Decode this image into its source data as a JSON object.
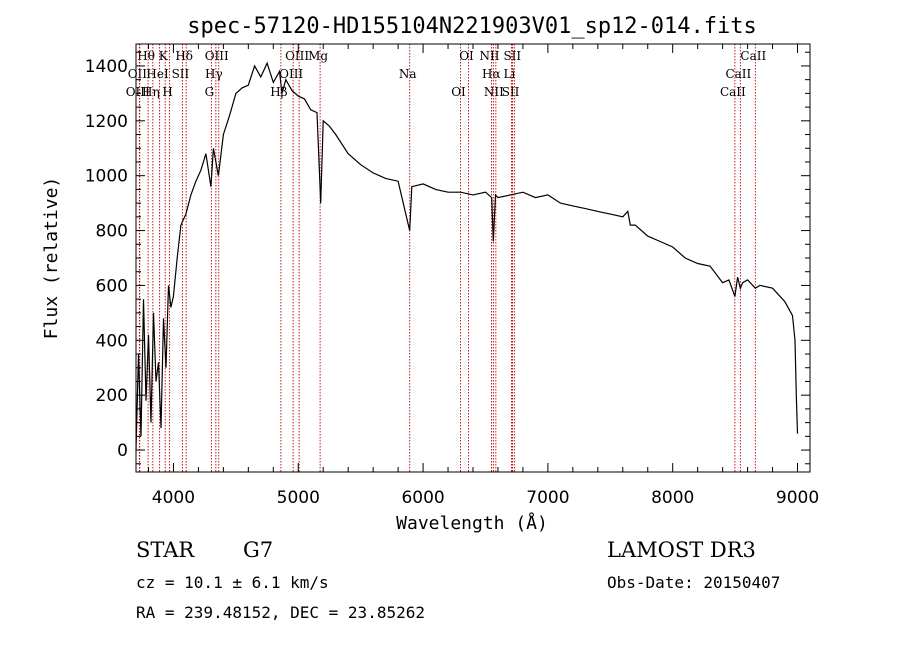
{
  "chart_data": {
    "type": "line",
    "title": "spec-57120-HD155104N221903V01_sp12-014.fits",
    "xlabel": "Wavelength (Å)",
    "ylabel": "Flux (relative)",
    "xlim": [
      3700,
      9100
    ],
    "ylim": [
      -80,
      1480
    ],
    "xticks": [
      4000,
      5000,
      6000,
      7000,
      8000,
      9000
    ],
    "yticks": [
      0,
      200,
      400,
      600,
      800,
      1000,
      1200,
      1400
    ],
    "series": [
      {
        "name": "flux",
        "x": [
          3700,
          3720,
          3740,
          3760,
          3780,
          3800,
          3820,
          3840,
          3860,
          3880,
          3900,
          3920,
          3940,
          3960,
          3980,
          4000,
          4030,
          4060,
          4100,
          4140,
          4180,
          4220,
          4260,
          4300,
          4320,
          4340,
          4360,
          4400,
          4450,
          4500,
          4550,
          4600,
          4650,
          4700,
          4750,
          4800,
          4850,
          4870,
          4900,
          4950,
          5000,
          5050,
          5100,
          5150,
          5180,
          5200,
          5250,
          5300,
          5400,
          5500,
          5600,
          5700,
          5800,
          5893,
          5910,
          6000,
          6100,
          6200,
          6300,
          6400,
          6500,
          6550,
          6563,
          6580,
          6600,
          6700,
          6800,
          6900,
          7000,
          7100,
          7200,
          7300,
          7400,
          7500,
          7600,
          7640,
          7660,
          7700,
          7800,
          7900,
          8000,
          8100,
          8200,
          8300,
          8400,
          8450,
          8498,
          8520,
          8542,
          8560,
          8600,
          8662,
          8700,
          8800,
          8900,
          8960,
          8980,
          8990,
          9000
        ],
        "y": [
          0,
          350,
          50,
          550,
          180,
          420,
          100,
          500,
          250,
          320,
          80,
          480,
          300,
          600,
          520,
          560,
          700,
          820,
          860,
          930,
          980,
          1020,
          1080,
          960,
          1100,
          1050,
          1000,
          1150,
          1220,
          1300,
          1320,
          1330,
          1400,
          1360,
          1410,
          1340,
          1380,
          1300,
          1350,
          1310,
          1290,
          1280,
          1240,
          1230,
          900,
          1200,
          1180,
          1150,
          1080,
          1040,
          1010,
          990,
          980,
          800,
          960,
          970,
          950,
          940,
          940,
          930,
          940,
          920,
          760,
          930,
          920,
          930,
          940,
          920,
          930,
          900,
          890,
          880,
          870,
          860,
          850,
          870,
          820,
          820,
          780,
          760,
          740,
          700,
          680,
          670,
          610,
          620,
          560,
          630,
          590,
          610,
          620,
          590,
          600,
          590,
          540,
          490,
          400,
          200,
          60
        ]
      }
    ],
    "line_markers": [
      {
        "label": "Hθ",
        "x": 3797
      },
      {
        "label": "OII",
        "x": 3727
      },
      {
        "label": "OIII",
        "x": 3730
      },
      {
        "label": "K",
        "x": 3934
      },
      {
        "label": "HeI",
        "x": 3889
      },
      {
        "label": "Hη",
        "x": 3835
      },
      {
        "label": "Hδ",
        "x": 4102
      },
      {
        "label": "SII",
        "x": 4072
      },
      {
        "label": "H",
        "x": 3969
      },
      {
        "label": "OIII",
        "x": 4363
      },
      {
        "label": "Hγ",
        "x": 4340
      },
      {
        "label": "G",
        "x": 4304
      },
      {
        "label": "OIII",
        "x": 5007
      },
      {
        "label": "OIII",
        "x": 4959
      },
      {
        "label": "Hβ",
        "x": 4861
      },
      {
        "label": "Mg",
        "x": 5175
      },
      {
        "label": "Na",
        "x": 5893
      },
      {
        "label": "OI",
        "x": 6300
      },
      {
        "label": "OI",
        "x": 6364
      },
      {
        "label": "Hα",
        "x": 6563
      },
      {
        "label": "SII",
        "x": 6717
      },
      {
        "label": "NII",
        "x": 6548
      },
      {
        "label": "Li",
        "x": 6708
      },
      {
        "label": "NII",
        "x": 6583
      },
      {
        "label": "SII",
        "x": 6731
      },
      {
        "label": "CaII",
        "x": 8542
      },
      {
        "label": "CaII",
        "x": 8498
      },
      {
        "label": "CaII",
        "x": 8662
      }
    ]
  },
  "info": {
    "object_class": "STAR",
    "subclass": "G7",
    "redshift_line": "cz = 10.1 ± 6.1 km/s",
    "coords_line": "RA = 239.48152, DEC =  23.85262",
    "survey": "LAMOST DR3",
    "obs_date_line": "Obs-Date: 20150407"
  }
}
